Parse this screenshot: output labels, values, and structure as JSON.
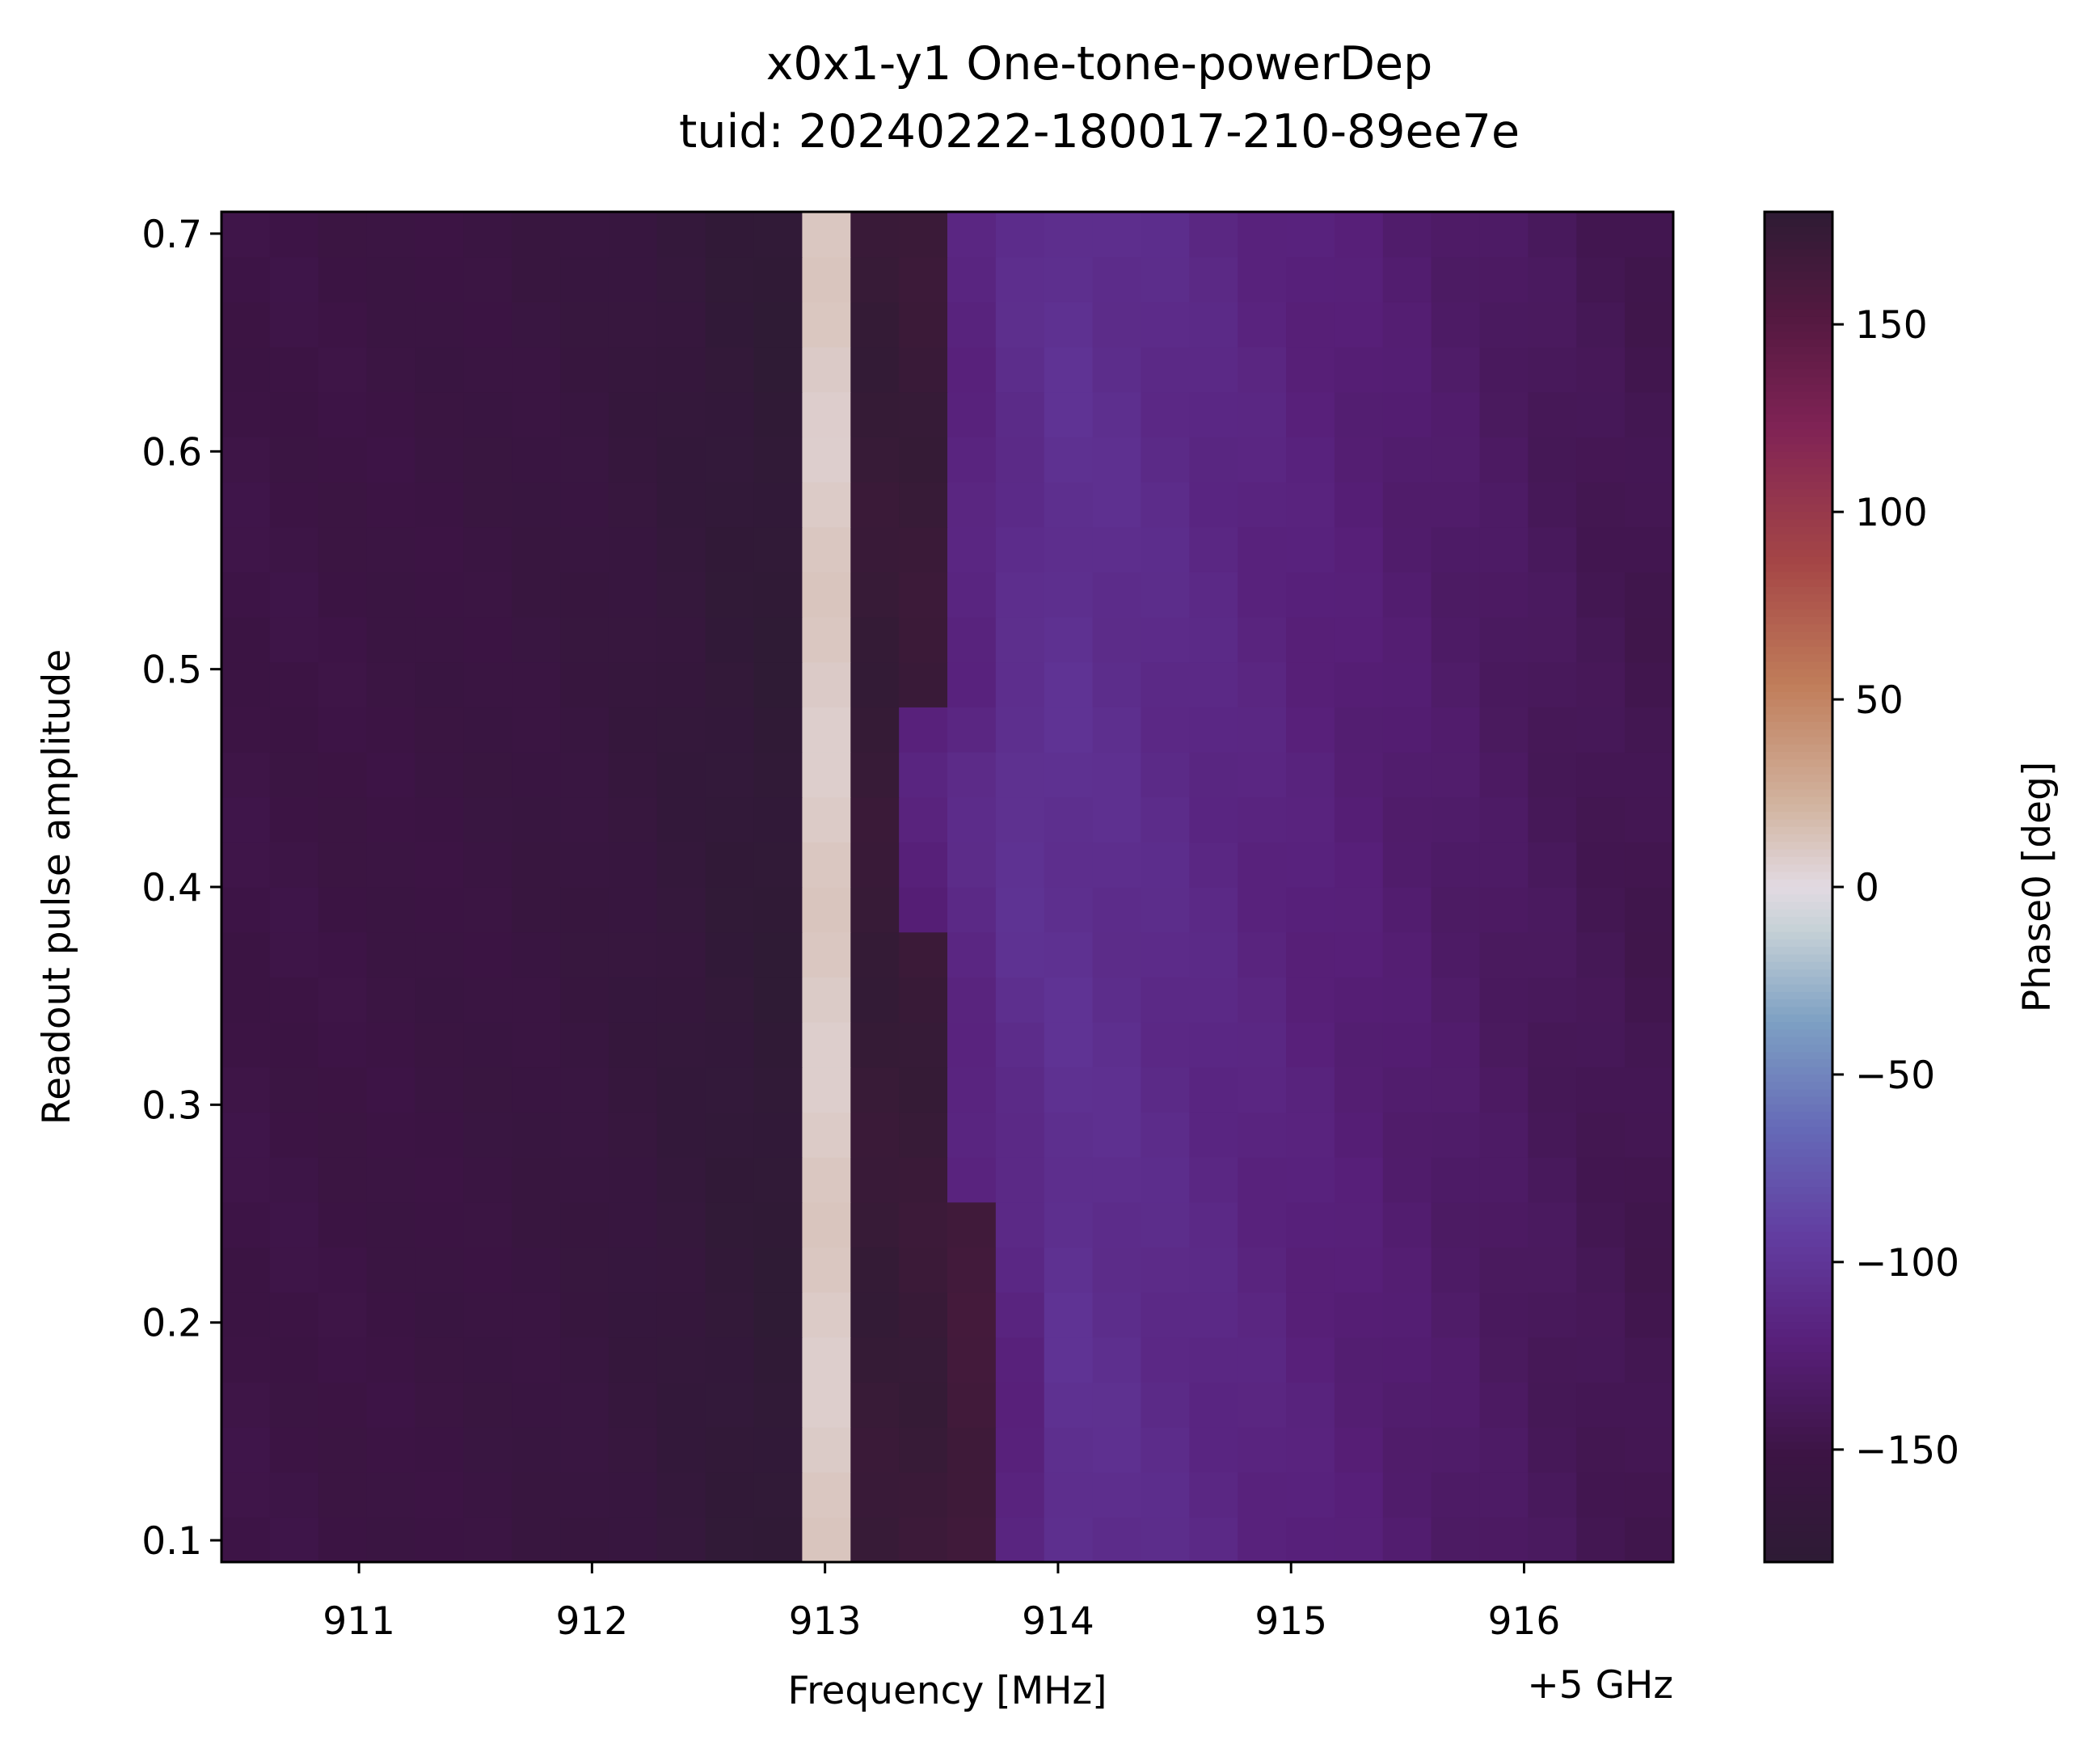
{
  "chart_data": {
    "type": "heatmap",
    "title": "x0x1-y1 One-tone-powerDep",
    "subtitle": "tuid: 20240222-180017-210-89ee7e",
    "xlabel": "Frequency [MHz]",
    "x_offset_label": "+5 GHz",
    "ylabel": "Readout pulse amplitude",
    "colorbar_label": "Phase0 [deg]",
    "colormap": "twilight_shifted",
    "xlim": [
      910.41,
      916.64
    ],
    "ylim": [
      0.09,
      0.71
    ],
    "clim": [
      -180,
      180
    ],
    "x_ticks": [
      911,
      912,
      913,
      914,
      915,
      916
    ],
    "y_ticks": [
      0.1,
      0.2,
      0.3,
      0.4,
      0.5,
      0.6,
      0.7
    ],
    "colorbar_ticks": [
      150,
      100,
      50,
      0,
      -50,
      -100,
      -150
    ],
    "colorbar_tick_labels": [
      "150",
      "100",
      "50",
      "0",
      "−50",
      "−100",
      "−150"
    ],
    "x_tick_labels": [
      "911",
      "912",
      "913",
      "914",
      "915",
      "916"
    ],
    "y_tick_labels": [
      "0.1",
      "0.2",
      "0.3",
      "0.4",
      "0.5",
      "0.6",
      "0.7"
    ],
    "x_bin_count": 30,
    "y_bin_count": 30,
    "phase_profile_deg": [
      [
        910.41,
        -150
      ],
      [
        911.0,
        -152
      ],
      [
        911.5,
        -155
      ],
      [
        912.0,
        -160
      ],
      [
        912.3,
        -165
      ],
      [
        912.6,
        -172
      ],
      [
        912.9,
        -178
      ],
      [
        913.1,
        176
      ],
      [
        913.3,
        172
      ],
      [
        913.5,
        -140
      ],
      [
        913.53,
        -112
      ],
      [
        913.9,
        -103
      ],
      [
        914.3,
        -108
      ],
      [
        914.8,
        -116
      ],
      [
        915.3,
        -124
      ],
      [
        915.8,
        -133
      ],
      [
        916.3,
        -142
      ],
      [
        916.64,
        -146
      ]
    ],
    "phase_edge_deg": {
      "left_plateau": -145,
      "right_plateau": -108
    },
    "edge_frequency_mhz": [
      [
        0.1,
        913.75
      ],
      [
        0.2,
        913.75
      ],
      [
        0.3,
        913.52
      ],
      [
        0.45,
        913.34
      ],
      [
        0.5,
        913.52
      ],
      [
        0.7,
        913.52
      ]
    ]
  }
}
